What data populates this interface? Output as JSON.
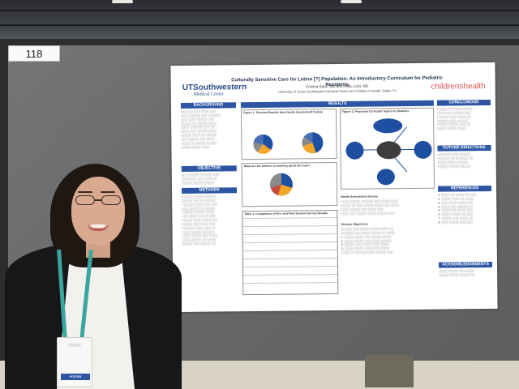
{
  "board": {
    "number": "118"
  },
  "poster": {
    "title": "Culturally Sensitive Care for Latino [?] Population: An Introductory Curriculum for Pediatric Residents",
    "logo_left": "UTSouthwestern",
    "logo_left_sub": "Medical Center",
    "logo_right": "childrenshealth",
    "authors": "Cristina Sauz, MD and Hilda Loria, MD",
    "affiliation": "University of Texas Southwestern Medical Center and Children's Health, Dallas TX",
    "headings": {
      "background": "BACKGROUND",
      "objective": "OBJECTIVE",
      "methods": "METHODS",
      "results": "RESULTS",
      "conclusions": "CONCLUSIONS",
      "future": "FUTURE DIRECTIONS",
      "references": "REFERENCES",
      "acknowledgements": "ACKNOWLEDGEMENTS"
    },
    "figure1_title": "Figure 1. Selected Results from Needs Assessment Survey",
    "figure2_title": "Figure 2. Proposed Curricular Topics for Modules",
    "figure3_title": "What are the barriers to learning about the topic?",
    "table1_title": "Table 1. Comparison of Pre- and Post-Session Survey Results",
    "needs_heading": "Needs Assessment Survey",
    "session_heading": "Session Objectives"
  },
  "badge": {
    "role": "POSTER PRESENTER"
  },
  "colors": {
    "poster_blue": "#2c56a3",
    "board_gray": "#6a6c6e",
    "lanyard_teal": "#3aa6a0"
  }
}
